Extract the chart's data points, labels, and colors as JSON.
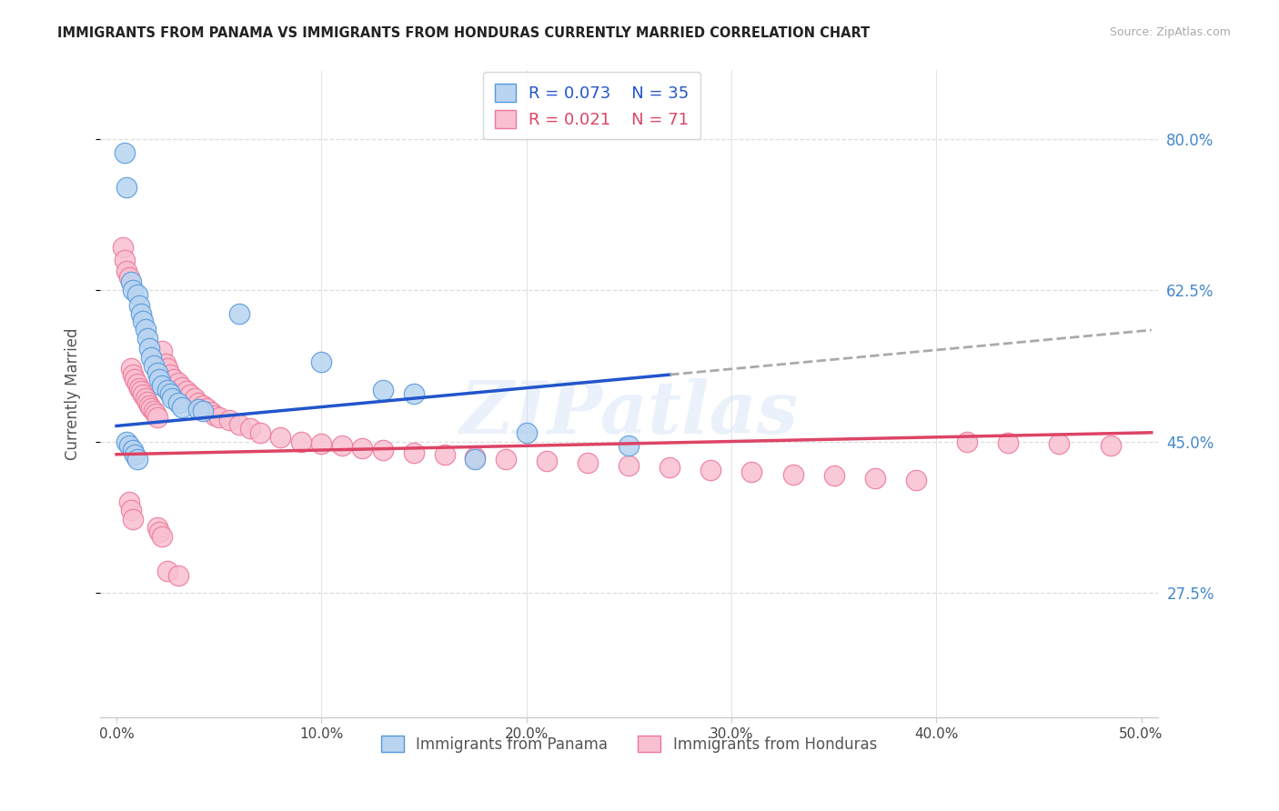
{
  "title": "IMMIGRANTS FROM PANAMA VS IMMIGRANTS FROM HONDURAS CURRENTLY MARRIED CORRELATION CHART",
  "source": "Source: ZipAtlas.com",
  "ylabel": "Currently Married",
  "y_ticks": [
    0.275,
    0.45,
    0.625,
    0.8
  ],
  "y_tick_labels": [
    "27.5%",
    "45.0%",
    "62.5%",
    "80.0%"
  ],
  "x_ticks": [
    0.0,
    0.1,
    0.2,
    0.3,
    0.4,
    0.5
  ],
  "x_tick_labels": [
    "0.0%",
    "10.0%",
    "20.0%",
    "30.0%",
    "40.0%",
    "50.0%"
  ],
  "x_lim": [
    -0.008,
    0.508
  ],
  "y_lim": [
    0.13,
    0.88
  ],
  "watermark": "ZIPatlas",
  "color_panama_fill": "#b8d4f0",
  "color_panama_edge": "#5599dd",
  "color_honduras_fill": "#f8c0d0",
  "color_honduras_edge": "#ee7799",
  "color_trend_panama": "#2255cc",
  "color_trend_honduras": "#dd4466",
  "color_trend_dashed": "#aaaaaa",
  "color_right_labels": "#4488cc",
  "color_grid": "#dddddd",
  "panama_x": [
    0.004,
    0.005,
    0.007,
    0.008,
    0.01,
    0.011,
    0.012,
    0.013,
    0.014,
    0.015,
    0.016,
    0.017,
    0.018,
    0.02,
    0.021,
    0.022,
    0.025,
    0.026,
    0.027,
    0.03,
    0.032,
    0.04,
    0.042,
    0.06,
    0.1,
    0.13,
    0.145,
    0.175,
    0.2,
    0.25,
    0.005,
    0.006,
    0.008,
    0.009,
    0.01
  ],
  "panama_y": [
    0.785,
    0.745,
    0.635,
    0.625,
    0.62,
    0.608,
    0.598,
    0.59,
    0.58,
    0.57,
    0.558,
    0.548,
    0.538,
    0.53,
    0.522,
    0.515,
    0.51,
    0.505,
    0.5,
    0.495,
    0.49,
    0.487,
    0.485,
    0.598,
    0.542,
    0.51,
    0.505,
    0.43,
    0.46,
    0.445,
    0.45,
    0.445,
    0.44,
    0.435,
    0.43
  ],
  "honduras_x": [
    0.003,
    0.004,
    0.005,
    0.006,
    0.007,
    0.008,
    0.009,
    0.01,
    0.011,
    0.012,
    0.013,
    0.014,
    0.015,
    0.016,
    0.017,
    0.018,
    0.019,
    0.02,
    0.022,
    0.024,
    0.025,
    0.026,
    0.028,
    0.03,
    0.032,
    0.034,
    0.036,
    0.038,
    0.04,
    0.042,
    0.044,
    0.046,
    0.048,
    0.05,
    0.055,
    0.06,
    0.065,
    0.07,
    0.08,
    0.09,
    0.1,
    0.11,
    0.12,
    0.13,
    0.145,
    0.16,
    0.175,
    0.19,
    0.21,
    0.23,
    0.25,
    0.27,
    0.29,
    0.31,
    0.33,
    0.35,
    0.37,
    0.39,
    0.415,
    0.435,
    0.46,
    0.485,
    0.006,
    0.007,
    0.008,
    0.02,
    0.021,
    0.022,
    0.025,
    0.03
  ],
  "honduras_y": [
    0.675,
    0.66,
    0.648,
    0.64,
    0.535,
    0.528,
    0.522,
    0.517,
    0.512,
    0.508,
    0.504,
    0.5,
    0.496,
    0.492,
    0.488,
    0.485,
    0.482,
    0.478,
    0.555,
    0.54,
    0.535,
    0.528,
    0.522,
    0.518,
    0.513,
    0.508,
    0.504,
    0.5,
    0.495,
    0.492,
    0.488,
    0.484,
    0.48,
    0.478,
    0.475,
    0.47,
    0.465,
    0.46,
    0.455,
    0.45,
    0.447,
    0.445,
    0.442,
    0.44,
    0.437,
    0.435,
    0.432,
    0.43,
    0.427,
    0.425,
    0.422,
    0.42,
    0.417,
    0.415,
    0.412,
    0.41,
    0.407,
    0.405,
    0.45,
    0.448,
    0.447,
    0.445,
    0.38,
    0.37,
    0.36,
    0.35,
    0.345,
    0.34,
    0.3,
    0.295
  ],
  "trend_solid_end_panama": 0.27,
  "trend_dash_start_panama": 0.27,
  "panama_trend_intercept": 0.468,
  "panama_trend_slope": 0.22,
  "honduras_trend_intercept": 0.435,
  "honduras_trend_slope": 0.05
}
